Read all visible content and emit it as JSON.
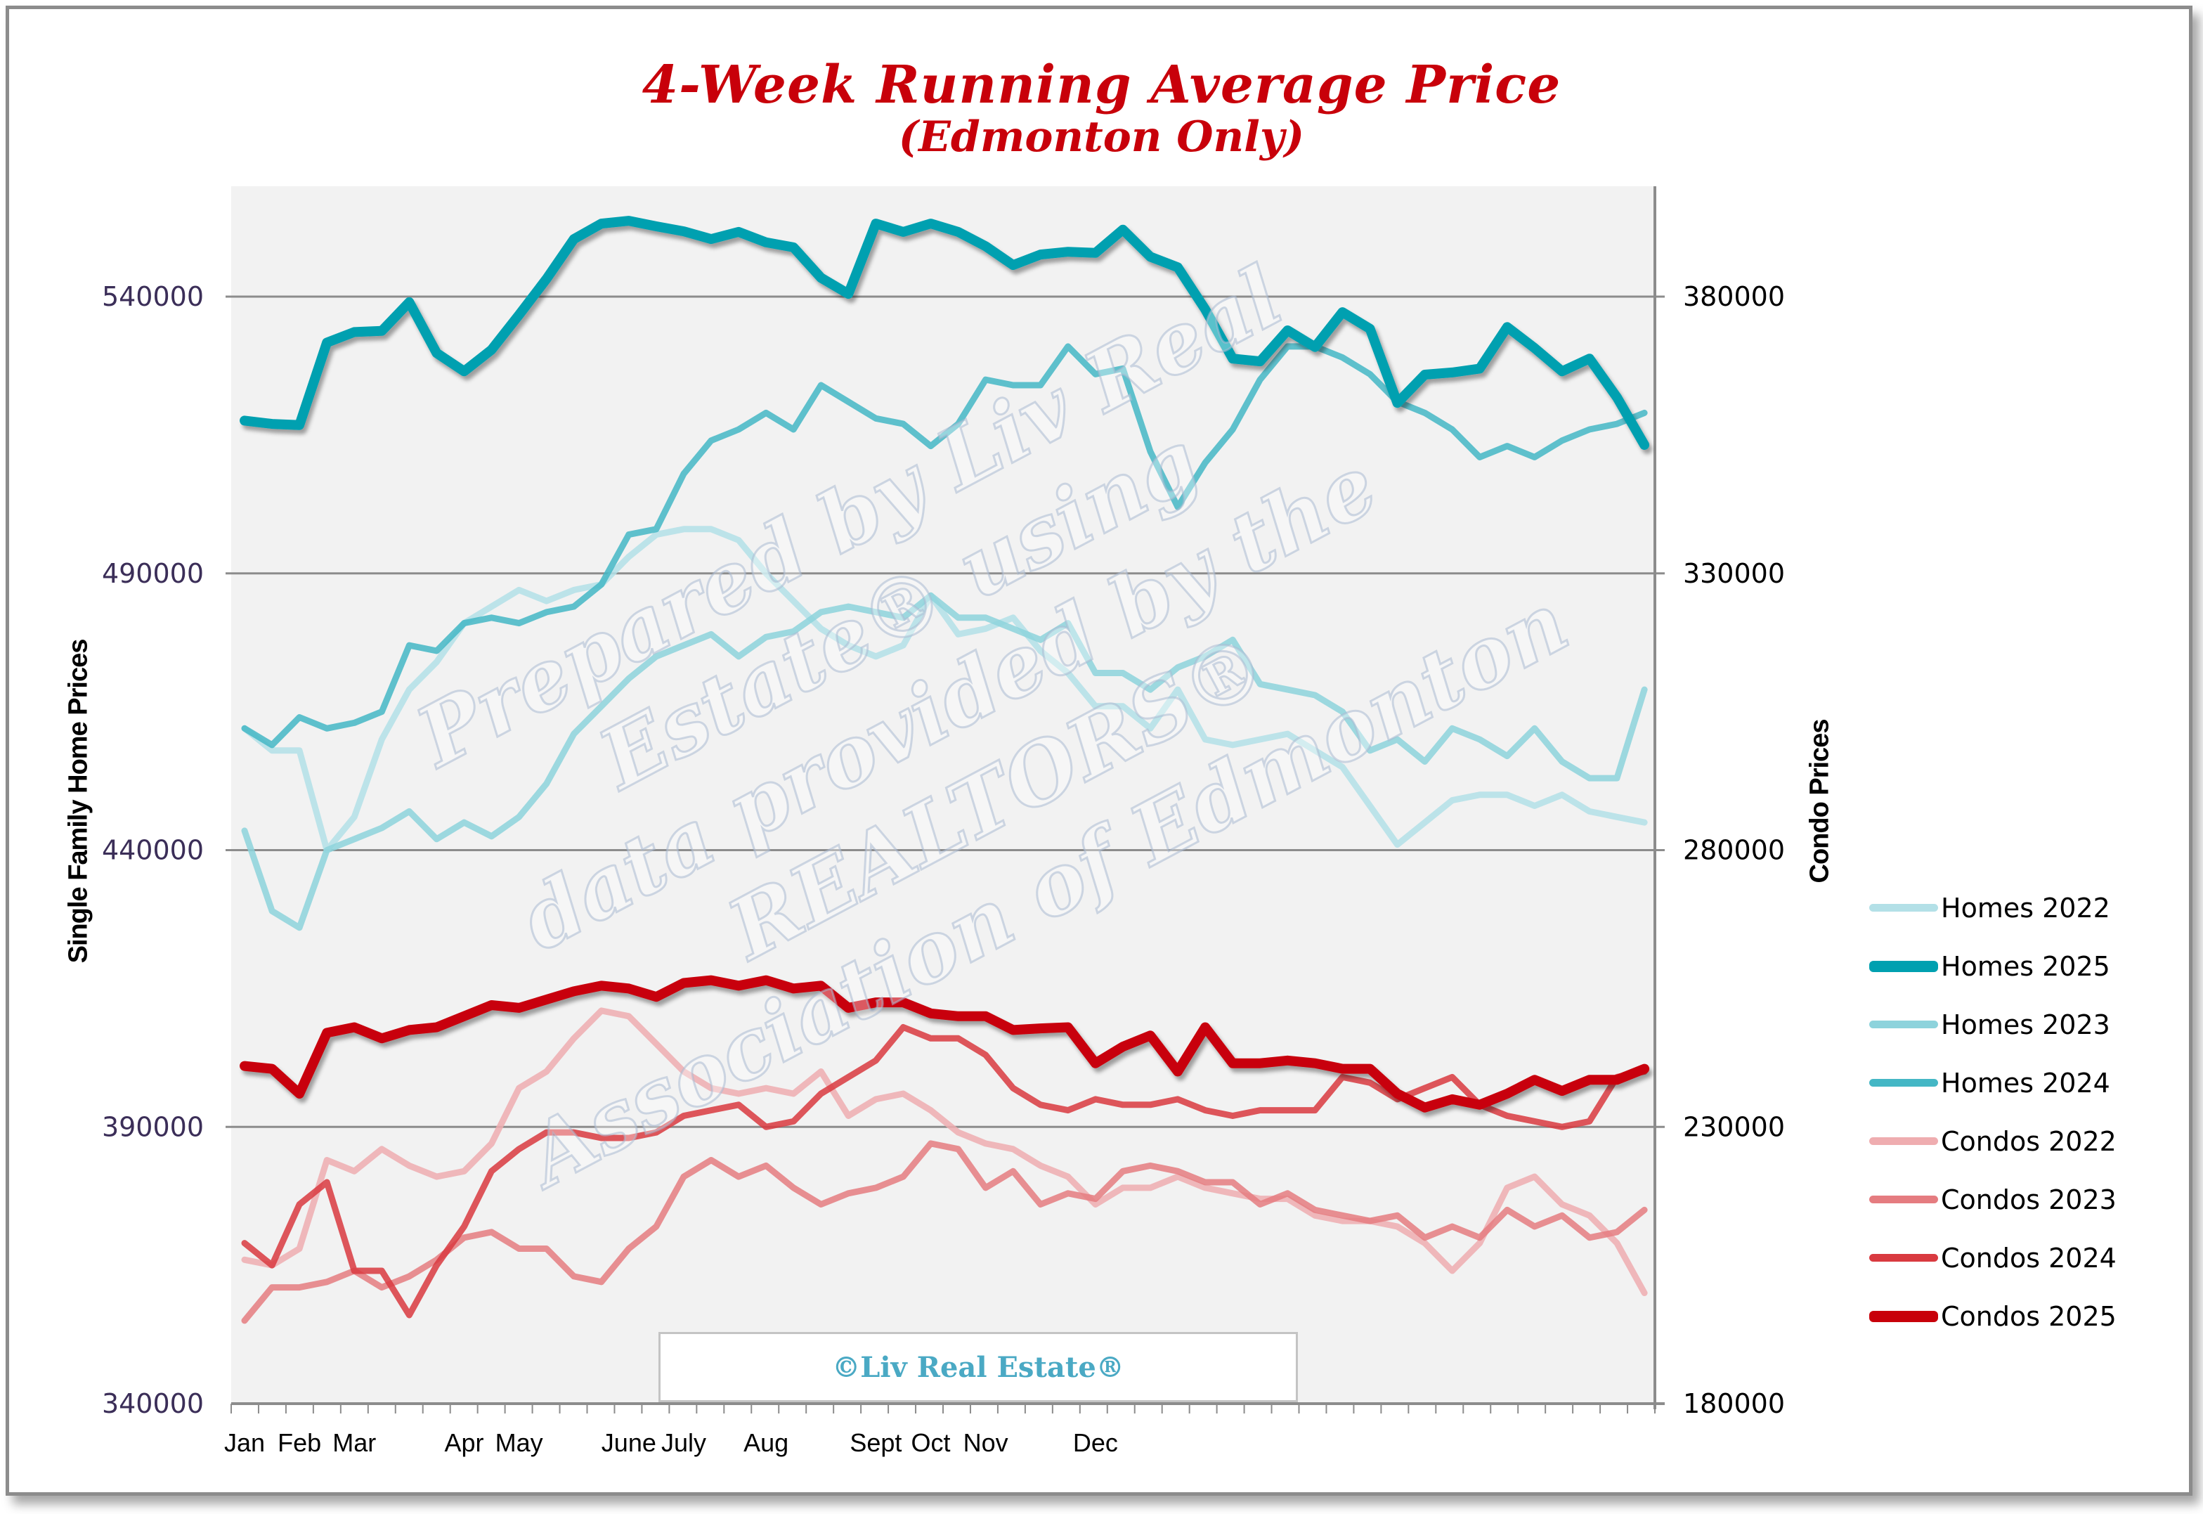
{
  "title": "4-Week Running Average Price",
  "subtitle": "(Edmonton Only)",
  "watermark_lines": [
    "Prepared by Liv Real",
    "Estate® using",
    "data provided by the",
    "REALTORS®",
    "Association of Edmonton"
  ],
  "credit": "©Liv Real Estate®",
  "colors": {
    "title": "#c8000a",
    "plot_bg": "#f2f2f2",
    "gridline": "#8c8c8c",
    "left_tick_text": "#3b2e58",
    "credit_text": "#4aa9c4"
  },
  "chart_data": {
    "type": "line",
    "title": "4-Week Running Average Price (Edmonton Only)",
    "xlabel": "",
    "ylabel": "Single Family Home Prices",
    "y2label": "Condo Prices",
    "x": "week index 1-52",
    "x_month_labels": [
      "Jan",
      "Feb",
      "Mar",
      "Apr",
      "May",
      "June",
      "July",
      "Aug",
      "Sept",
      "Oct",
      "Nov",
      "Dec"
    ],
    "x_month_label_weeks": [
      1,
      3,
      5,
      9,
      11,
      15,
      17,
      20,
      24,
      26,
      28,
      32
    ],
    "ylim": [
      340000,
      560000
    ],
    "y_ticks": [
      340000,
      390000,
      440000,
      490000,
      540000
    ],
    "y2lim": [
      180000,
      400000
    ],
    "y2_ticks": [
      180000,
      230000,
      280000,
      330000,
      380000
    ],
    "grid": true,
    "legend_position": "right",
    "series": [
      {
        "name": "Homes 2022",
        "axis": "left",
        "color": "#b3e0e7",
        "width": "thin",
        "values": [
          462000,
          458000,
          458000,
          440000,
          446000,
          460000,
          469000,
          474000,
          481000,
          484000,
          487000,
          485000,
          487000,
          488000,
          493000,
          497000,
          498000,
          498000,
          496000,
          490000,
          485000,
          480000,
          477000,
          475000,
          477000,
          486000,
          479000,
          480000,
          482000,
          476000,
          472000,
          466000,
          466000,
          462000,
          469000,
          460000,
          459000,
          460000,
          461000,
          458000,
          455000,
          448000,
          441000,
          445000,
          449000,
          450000,
          450000,
          448000,
          450000,
          447000,
          446000,
          445000
        ]
      },
      {
        "name": "Homes 2025",
        "axis": "left",
        "color": "#00a0b0",
        "width": "thick",
        "values": [
          517600,
          517000,
          516800,
          531700,
          533600,
          533800,
          539000,
          529800,
          526500,
          530400,
          536700,
          543200,
          550400,
          553200,
          553700,
          552700,
          551800,
          550400,
          551700,
          549800,
          548900,
          543400,
          540500,
          553200,
          551700,
          553200,
          551700,
          549100,
          545700,
          547600,
          548100,
          547900,
          552100,
          547200,
          545300,
          537700,
          528800,
          528300,
          533900,
          530900,
          537200,
          534200,
          520800,
          525900,
          526300,
          527000,
          534500,
          530700,
          526500,
          528800,
          521800,
          513200
        ]
      },
      {
        "name": "Homes 2023",
        "axis": "left",
        "color": "#8dd3dc",
        "width": "medium",
        "values": [
          443500,
          429000,
          426000,
          440000,
          442000,
          444000,
          447000,
          442000,
          445000,
          442500,
          446000,
          452000,
          461000,
          466000,
          471000,
          475000,
          477000,
          479000,
          475000,
          478500,
          479500,
          483000,
          484000,
          483000,
          482000,
          486000,
          482000,
          482000,
          480000,
          478000,
          481000,
          472000,
          472000,
          469000,
          473000,
          475000,
          478000,
          470000,
          469000,
          468000,
          465000,
          458000,
          460000,
          456000,
          462000,
          460000,
          457000,
          462000,
          456000,
          453000,
          453000,
          469000
        ]
      },
      {
        "name": "Homes 2024",
        "axis": "left",
        "color": "#44b7c5",
        "width": "medium",
        "values": [
          462000,
          459000,
          464000,
          462000,
          463000,
          465000,
          477000,
          476000,
          481000,
          482000,
          481000,
          483000,
          484000,
          488000,
          497000,
          498000,
          508000,
          514000,
          516000,
          519000,
          516000,
          524000,
          521000,
          518000,
          517000,
          513000,
          517000,
          525000,
          524000,
          524000,
          531000,
          526000,
          527000,
          512000,
          502000,
          510000,
          516000,
          525000,
          531000,
          531000,
          529000,
          526000,
          521000,
          519000,
          516000,
          511000,
          513000,
          511000,
          514000,
          516000,
          517000,
          519000
        ]
      },
      {
        "name": "Condos 2022",
        "axis": "right",
        "color": "#efadb0",
        "width": "medium",
        "values": [
          206000,
          205000,
          208000,
          224000,
          222000,
          226000,
          223000,
          221000,
          222000,
          227000,
          237000,
          240000,
          246000,
          251000,
          250000,
          245000,
          240000,
          237000,
          236000,
          237000,
          236000,
          240000,
          232000,
          235000,
          236000,
          233000,
          229000,
          227000,
          226000,
          223000,
          221000,
          216000,
          219000,
          219000,
          221000,
          219000,
          218000,
          217000,
          217000,
          214000,
          213000,
          213000,
          212000,
          209000,
          204000,
          209000,
          219000,
          221000,
          216000,
          214000,
          209000,
          200000
        ]
      },
      {
        "name": "Condos 2023",
        "axis": "right",
        "color": "#e57c80",
        "width": "medium",
        "values": [
          195000,
          201000,
          201000,
          202000,
          204000,
          201000,
          203000,
          206000,
          210000,
          211000,
          208000,
          208000,
          203000,
          202000,
          208000,
          212000,
          221000,
          224000,
          221000,
          223000,
          219000,
          216000,
          218000,
          219000,
          221000,
          227000,
          226000,
          219000,
          222000,
          216000,
          218000,
          217000,
          222000,
          223000,
          222000,
          220000,
          220000,
          216000,
          218000,
          215000,
          214000,
          213000,
          214000,
          210000,
          212000,
          210000,
          215000,
          212000,
          214000,
          210000,
          211000,
          215000
        ]
      },
      {
        "name": "Condos 2024",
        "axis": "right",
        "color": "#d93a40",
        "width": "medium",
        "values": [
          209000,
          205000,
          216000,
          220000,
          204000,
          204000,
          196000,
          205000,
          212000,
          222000,
          226000,
          229000,
          229000,
          228000,
          228000,
          229000,
          232000,
          233000,
          234000,
          230000,
          231000,
          236000,
          239000,
          242000,
          248000,
          246000,
          246000,
          243000,
          237000,
          234000,
          233000,
          235000,
          234000,
          234000,
          235000,
          233000,
          232000,
          233000,
          233000,
          233000,
          239000,
          238000,
          235000,
          237000,
          239000,
          234000,
          232000,
          231000,
          230000,
          231000,
          239000,
          240000
        ]
      },
      {
        "name": "Condos 2025",
        "axis": "right",
        "color": "#c8000a",
        "width": "thick",
        "values": [
          241000,
          240500,
          236000,
          247000,
          248000,
          246000,
          247500,
          248000,
          250000,
          252000,
          251500,
          253000,
          254500,
          255500,
          255000,
          253500,
          256000,
          256500,
          255500,
          256500,
          255000,
          255500,
          251500,
          252500,
          252500,
          250500,
          250000,
          250000,
          247500,
          247800,
          248000,
          241500,
          244500,
          246500,
          240000,
          248000,
          241500,
          241500,
          242000,
          241500,
          240500,
          240500,
          236000,
          233500,
          235000,
          234000,
          236000,
          238500,
          236500,
          238500,
          238500,
          240500
        ]
      }
    ]
  }
}
